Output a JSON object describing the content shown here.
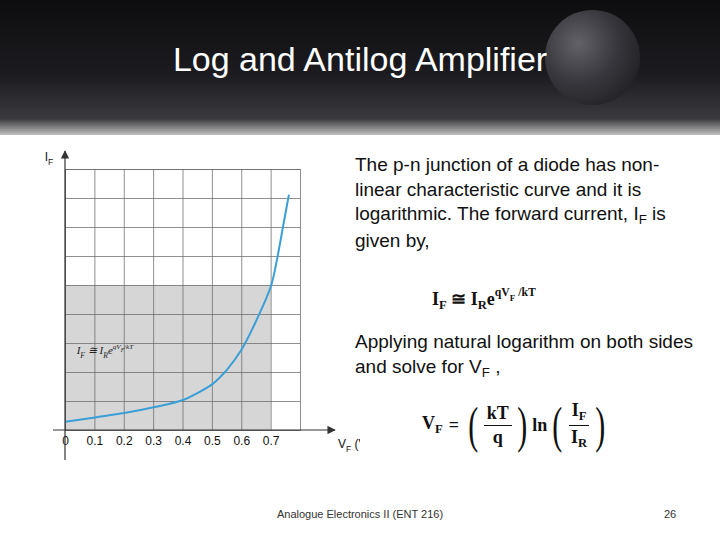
{
  "slide": {
    "title": "Log and Antilog Amplifier",
    "paragraphs": [
      [
        {
          "t": "The p-n junction of a diode has non-linear characteristic curve and it is logarithmic. The forward current, I"
        },
        {
          "t": "F",
          "sub": true
        },
        {
          "t": " is given by,"
        }
      ],
      [
        {
          "t": "Applying natural logarithm on both sides and solve for V"
        },
        {
          "t": "F",
          "sub": true
        },
        {
          "t": " ,"
        }
      ]
    ],
    "equations": [
      {
        "segments": [
          {
            "t": "I"
          },
          {
            "t": "F",
            "sub": true
          },
          {
            "t": " ≅ I"
          },
          {
            "t": "R",
            "sub": true
          },
          {
            "t": "e"
          },
          {
            "t": "qV",
            "sup": true
          },
          {
            "t": "F",
            "sup": true,
            "sub": true
          },
          {
            "t": " /kT",
            "sup": true
          }
        ]
      },
      {
        "lhs": [
          {
            "t": "V"
          },
          {
            "t": "F",
            "sub": true
          }
        ],
        "relation": "=",
        "fractions": [
          {
            "num": [
              {
                "t": "kT"
              }
            ],
            "den": [
              {
                "t": "q"
              }
            ]
          },
          {
            "num": [
              {
                "t": "I"
              },
              {
                "t": "F",
                "sub": true
              }
            ],
            "den": [
              {
                "t": "I"
              },
              {
                "t": "R",
                "sub": true
              }
            ]
          }
        ],
        "function": "ln"
      }
    ],
    "footer": "Analogue Electronics II (ENT 216)",
    "page": 26
  },
  "chart_data": {
    "type": "line",
    "xlabel": [
      {
        "t": "V"
      },
      {
        "t": "F",
        "sub": true
      },
      {
        "t": " (V)"
      }
    ],
    "ylabel": [
      {
        "t": "I"
      },
      {
        "t": "F",
        "sub": true
      }
    ],
    "x": [
      0,
      0.1,
      0.2,
      0.3,
      0.4,
      0.45,
      0.5,
      0.55,
      0.6,
      0.65,
      0.7,
      0.72,
      0.74,
      0.76
    ],
    "values": [
      0.3,
      0.45,
      0.6,
      0.8,
      1.05,
      1.3,
      1.6,
      2.1,
      2.8,
      3.8,
      5.0,
      5.9,
      7.0,
      8.1
    ],
    "color": "#3a9fd6",
    "xlim": [
      0,
      0.8
    ],
    "xticks": [
      0,
      0.1,
      0.2,
      0.3,
      0.4,
      0.5,
      0.6,
      0.7
    ],
    "ylim": [
      0,
      9
    ],
    "yticks": [
      0,
      1,
      2,
      3,
      4,
      5,
      6,
      7,
      8,
      9
    ],
    "grid": true,
    "tick_labels": "x",
    "shaded_region": {
      "x": [
        0,
        0.7
      ],
      "y": [
        0,
        5
      ]
    },
    "annotation": [
      {
        "t": "I"
      },
      {
        "t": "F",
        "sub": true
      },
      {
        "t": " ≅ I"
      },
      {
        "t": "R",
        "sub": true
      },
      {
        "t": "e"
      },
      {
        "t": "qV",
        "sup": true
      },
      {
        "t": "F",
        "sup": true,
        "sub": true
      },
      {
        "t": "/kT",
        "sup": true
      }
    ]
  }
}
